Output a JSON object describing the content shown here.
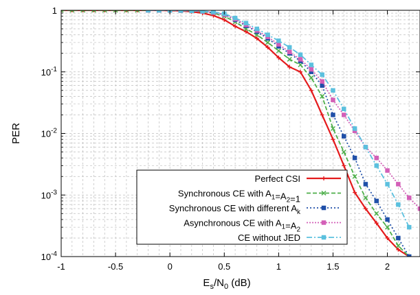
{
  "chart_data": {
    "type": "line",
    "xlabel": "E_s/N_0 (dB)",
    "xlabel_parts": {
      "main": "E",
      "sub1": "s",
      "mid": "/N",
      "sub2": "0",
      "tail": " (dB)"
    },
    "ylabel": "PER",
    "xlim": [
      -1,
      2.3
    ],
    "ylim": [
      0.0001,
      1
    ],
    "yscale": "log",
    "grid": true,
    "legend_position": "bottom-right",
    "x_ticks": [
      {
        "value": -1,
        "label": "-1"
      },
      {
        "value": -0.5,
        "label": "-0.5"
      },
      {
        "value": 0,
        "label": "0"
      },
      {
        "value": 0.5,
        "label": "0.5"
      },
      {
        "value": 1,
        "label": "1"
      },
      {
        "value": 1.5,
        "label": "1.5"
      },
      {
        "value": 2,
        "label": "2"
      }
    ],
    "y_ticks": [
      {
        "value": 1,
        "base": "1",
        "exp": ""
      },
      {
        "value": 0.1,
        "base": "10",
        "exp": "-1"
      },
      {
        "value": 0.01,
        "base": "10",
        "exp": "-2"
      },
      {
        "value": 0.001,
        "base": "10",
        "exp": "-3"
      },
      {
        "value": 0.0001,
        "base": "10",
        "exp": "-4"
      }
    ],
    "series": [
      {
        "name": "Perfect CSI",
        "legend_parts": [
          {
            "t": "Perfect CSI"
          }
        ],
        "color": "#e41a1c",
        "dash": "",
        "marker": "plus",
        "width": 2.2,
        "x": [
          -1,
          -0.9,
          -0.8,
          -0.7,
          -0.6,
          -0.5,
          -0.4,
          -0.3,
          -0.2,
          -0.1,
          0,
          0.1,
          0.2,
          0.3,
          0.4,
          0.5,
          0.6,
          0.7,
          0.8,
          0.9,
          1.0,
          1.1,
          1.2,
          1.3,
          1.4,
          1.5,
          1.6,
          1.7,
          1.8,
          1.9,
          2.0,
          2.1,
          2.2
        ],
        "y": [
          1,
          1,
          1,
          1,
          1,
          1,
          1,
          1,
          1,
          1,
          0.99,
          0.98,
          0.95,
          0.9,
          0.82,
          0.7,
          0.55,
          0.45,
          0.35,
          0.25,
          0.17,
          0.12,
          0.1,
          0.05,
          0.02,
          0.008,
          0.003,
          0.0011,
          0.0006,
          0.00035,
          0.0002,
          0.00013,
          0.0001
        ]
      },
      {
        "name": "Synchronous CE with A1=A2=1",
        "legend_parts": [
          {
            "t": "Synchronous CE with A"
          },
          {
            "t": "1",
            "sub": true
          },
          {
            "t": "=A"
          },
          {
            "t": "2",
            "sub": true
          },
          {
            "t": "=1"
          }
        ],
        "color": "#4daf4a",
        "dash": "6,3",
        "marker": "x",
        "width": 1.8,
        "x": [
          -1,
          -0.9,
          -0.8,
          -0.7,
          -0.6,
          -0.5,
          -0.4,
          -0.3,
          -0.2,
          -0.1,
          0,
          0.1,
          0.2,
          0.3,
          0.4,
          0.5,
          0.6,
          0.7,
          0.8,
          0.9,
          1.0,
          1.1,
          1.2,
          1.3,
          1.4,
          1.5,
          1.6,
          1.7,
          1.8,
          1.9,
          2.0,
          2.1,
          2.2
        ],
        "y": [
          1,
          1,
          1,
          1,
          1,
          1,
          1,
          1,
          1,
          1,
          1,
          0.99,
          0.98,
          0.95,
          0.9,
          0.8,
          0.65,
          0.5,
          0.4,
          0.3,
          0.22,
          0.16,
          0.13,
          0.08,
          0.04,
          0.012,
          0.005,
          0.002,
          0.0009,
          0.0005,
          0.0003,
          0.00015,
          0.0001
        ]
      },
      {
        "name": "Synchronous CE with different Ak",
        "legend_parts": [
          {
            "t": "Synchronous CE with different A"
          },
          {
            "t": "k",
            "sub": true
          }
        ],
        "color": "#1f4fa8",
        "dash": "2,3",
        "marker": "square",
        "width": 1.8,
        "x": [
          -0.2,
          -0.1,
          0,
          0.1,
          0.2,
          0.3,
          0.4,
          0.5,
          0.6,
          0.7,
          0.8,
          0.9,
          1.0,
          1.1,
          1.2,
          1.3,
          1.4,
          1.5,
          1.6,
          1.7,
          1.8,
          1.9,
          2.0,
          2.1,
          2.2
        ],
        "y": [
          1,
          1,
          1,
          0.99,
          0.98,
          0.96,
          0.92,
          0.85,
          0.7,
          0.56,
          0.45,
          0.35,
          0.26,
          0.2,
          0.15,
          0.1,
          0.06,
          0.02,
          0.009,
          0.004,
          0.0015,
          0.0008,
          0.0004,
          0.0002,
          0.0001
        ]
      },
      {
        "name": "Asynchronous CE with A1=A2",
        "legend_parts": [
          {
            "t": "Asynchronous CE with A"
          },
          {
            "t": "1",
            "sub": true
          },
          {
            "t": "=A"
          },
          {
            "t": "2",
            "sub": true
          }
        ],
        "color": "#d35fb7",
        "dash": "2,2",
        "marker": "square",
        "width": 1.8,
        "x": [
          -0.2,
          -0.1,
          0,
          0.1,
          0.2,
          0.3,
          0.4,
          0.5,
          0.6,
          0.7,
          0.8,
          0.9,
          1.0,
          1.1,
          1.2,
          1.3,
          1.4,
          1.5,
          1.6,
          1.7,
          1.8,
          1.9,
          2.0,
          2.1,
          2.2,
          2.3
        ],
        "y": [
          1,
          1,
          1,
          0.99,
          0.98,
          0.96,
          0.92,
          0.85,
          0.72,
          0.58,
          0.47,
          0.37,
          0.28,
          0.21,
          0.16,
          0.11,
          0.07,
          0.035,
          0.02,
          0.011,
          0.006,
          0.004,
          0.0025,
          0.0015,
          0.0009,
          0.0006
        ]
      },
      {
        "name": "CE without JED",
        "legend_parts": [
          {
            "t": "CE without JED"
          }
        ],
        "color": "#5bc0de",
        "dash": "8,3,2,3",
        "marker": "square",
        "width": 1.8,
        "x": [
          -0.2,
          -0.1,
          0,
          0.1,
          0.2,
          0.3,
          0.4,
          0.5,
          0.6,
          0.7,
          0.8,
          0.9,
          1.0,
          1.1,
          1.2,
          1.3,
          1.4,
          1.5,
          1.6,
          1.7,
          1.8,
          1.9,
          2.0,
          2.1,
          2.2
        ],
        "y": [
          1,
          1,
          1,
          0.99,
          0.98,
          0.97,
          0.94,
          0.88,
          0.75,
          0.62,
          0.5,
          0.4,
          0.32,
          0.25,
          0.19,
          0.13,
          0.09,
          0.05,
          0.025,
          0.012,
          0.006,
          0.003,
          0.0015,
          0.0007,
          0.0003
        ]
      }
    ]
  }
}
